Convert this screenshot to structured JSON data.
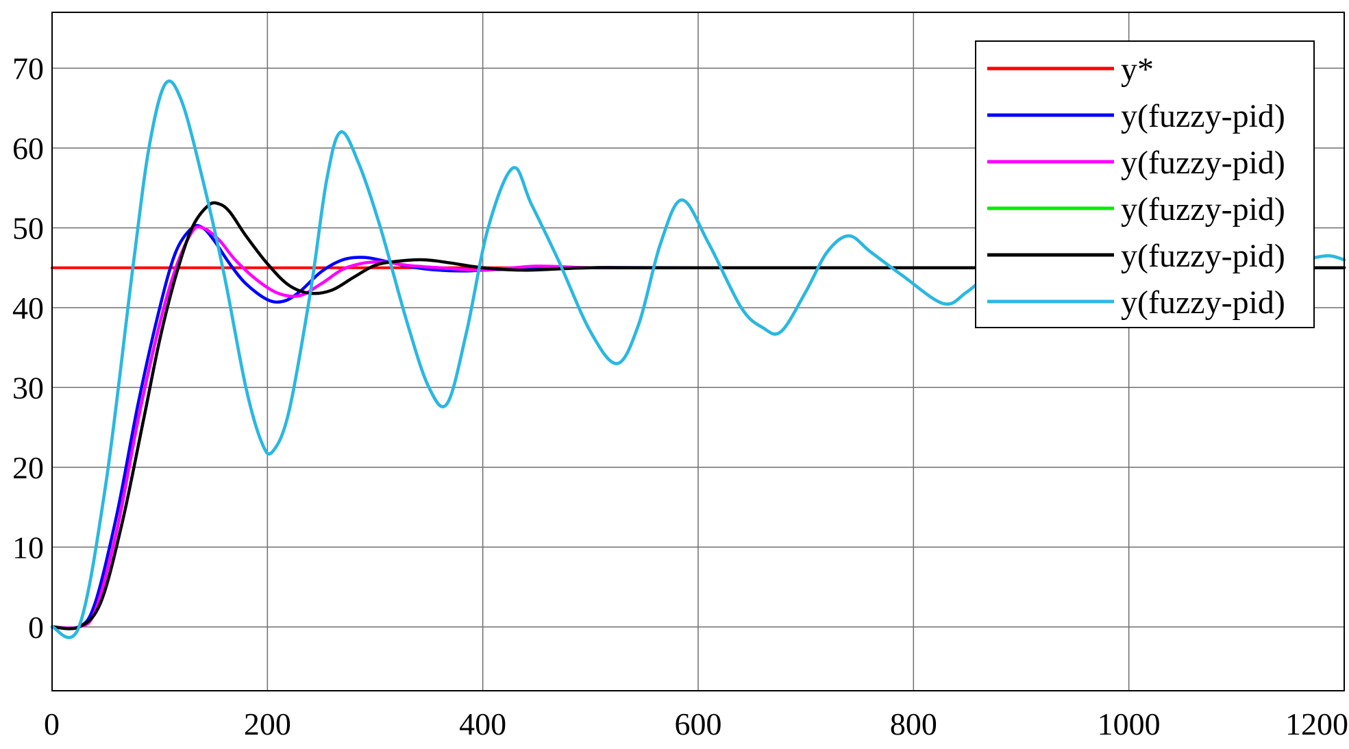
{
  "chart_data": {
    "type": "line",
    "title": "",
    "xlabel": "",
    "ylabel": "",
    "xlim": [
      0,
      1200
    ],
    "ylim": [
      -8,
      77
    ],
    "grid": true,
    "legend_position": "top-right",
    "x_ticks": [
      "0",
      "200",
      "400",
      "600",
      "800",
      "1000",
      "1200"
    ],
    "y_ticks": [
      "0",
      "10",
      "20",
      "30",
      "40",
      "50",
      "60",
      "70"
    ],
    "x_tick_values": [
      0,
      200,
      400,
      600,
      800,
      1000,
      1200
    ],
    "y_tick_values": [
      0,
      10,
      20,
      30,
      40,
      50,
      60,
      70
    ],
    "colors": {
      "grid": "#6e6e6e",
      "frame": "#000000"
    },
    "series": [
      {
        "name": "y*",
        "color": "#ff0000",
        "x": [
          0,
          1200
        ],
        "y": [
          45,
          45
        ]
      },
      {
        "name": "y(fuzzy-pid)",
        "color": "#0000ff",
        "x": [
          0,
          25,
          40,
          60,
          80,
          100,
          115,
          130,
          140,
          150,
          165,
          180,
          200,
          215,
          230,
          250,
          270,
          290,
          310,
          330,
          350,
          380,
          420,
          500,
          600,
          1200
        ],
        "y": [
          0,
          0,
          3,
          14,
          28,
          40,
          47,
          50,
          50,
          48.5,
          45.5,
          43,
          41,
          40.8,
          42,
          44.5,
          46,
          46.3,
          45.8,
          45.2,
          44.8,
          44.6,
          44.8,
          45,
          45,
          45
        ]
      },
      {
        "name": "y(fuzzy-pid)",
        "color": "#ff00ff",
        "x": [
          0,
          25,
          40,
          60,
          80,
          100,
          115,
          130,
          140,
          155,
          170,
          190,
          210,
          230,
          250,
          270,
          290,
          310,
          330,
          360,
          400,
          450,
          500,
          600,
          1200
        ],
        "y": [
          0,
          0,
          2,
          12,
          26,
          38,
          45,
          49.5,
          50,
          48.5,
          46,
          43.5,
          41.8,
          41.5,
          43,
          44.8,
          45.6,
          45.7,
          45.3,
          45,
          44.7,
          45.2,
          45,
          45,
          45
        ]
      },
      {
        "name": "y(fuzzy-pid)",
        "color": "#00ee00",
        "x": [
          0,
          25,
          50,
          75,
          90,
          105,
          120,
          140,
          160,
          180,
          195,
          205,
          220,
          240,
          255,
          268,
          285,
          305,
          330,
          350,
          367,
          385,
          405,
          428,
          445,
          470,
          500,
          525,
          545,
          565,
          585,
          610,
          640,
          660,
          677,
          700,
          720,
          740,
          760,
          790,
          828,
          850,
          880,
          920,
          960,
          1000,
          1040,
          1080,
          1120,
          1160,
          1185,
          1200
        ],
        "y": [
          0,
          0,
          18,
          45,
          60,
          68,
          66,
          56,
          44,
          30,
          23,
          22,
          27,
          42,
          56,
          62,
          58,
          50,
          38,
          30,
          28,
          37,
          50,
          57.5,
          53,
          46,
          37,
          33,
          38,
          48,
          53.5,
          48,
          40,
          37.5,
          37,
          42,
          47,
          49,
          47,
          44,
          40.5,
          42,
          45,
          46,
          45.5,
          45,
          44.5,
          45,
          45.5,
          46,
          46.5,
          46
        ]
      },
      {
        "name": "y(fuzzy-pid)",
        "color": "#000000",
        "x": [
          0,
          25,
          45,
          65,
          85,
          100,
          115,
          130,
          145,
          155,
          165,
          180,
          200,
          220,
          240,
          260,
          280,
          300,
          320,
          345,
          370,
          400,
          440,
          500,
          600,
          1200
        ],
        "y": [
          0,
          0,
          3,
          13,
          26,
          36,
          44,
          50,
          52.8,
          53,
          52,
          49,
          45.5,
          42.8,
          41.8,
          42.2,
          43.8,
          45.3,
          45.8,
          46,
          45.6,
          45,
          44.7,
          45,
          45,
          45
        ]
      },
      {
        "name": "y(fuzzy-pid)",
        "color": "#2cb6e6",
        "x": [
          0,
          25,
          50,
          75,
          90,
          105,
          120,
          140,
          160,
          180,
          195,
          205,
          220,
          240,
          255,
          268,
          285,
          305,
          330,
          350,
          367,
          385,
          405,
          428,
          445,
          470,
          500,
          525,
          545,
          565,
          585,
          610,
          640,
          660,
          677,
          700,
          720,
          740,
          760,
          790,
          828,
          850,
          880,
          920,
          960,
          1000,
          1040,
          1080,
          1120,
          1160,
          1185,
          1200
        ],
        "y": [
          0,
          0,
          18,
          45,
          60,
          68,
          66,
          56,
          44,
          30,
          23,
          22,
          27,
          42,
          56,
          62,
          58,
          50,
          38,
          30,
          28,
          37,
          50,
          57.5,
          53,
          46,
          37,
          33,
          38,
          48,
          53.5,
          48,
          40,
          37.5,
          37,
          42,
          47,
          49,
          47,
          44,
          40.5,
          42,
          45,
          46,
          45.5,
          45,
          44.5,
          45,
          45.5,
          46,
          46.5,
          46
        ]
      }
    ]
  }
}
